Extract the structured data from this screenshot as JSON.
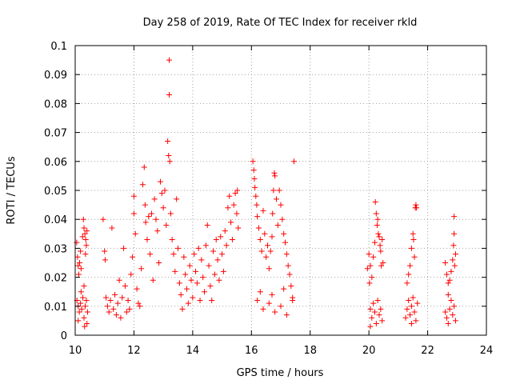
{
  "chart_data": {
    "type": "scatter",
    "title": "Day 258 of 2019, Rate Of TEC Index for receiver rkld",
    "xlabel": "GPS time / hours",
    "ylabel": "ROTI / TECUs",
    "xlim": [
      10,
      24
    ],
    "ylim": [
      0,
      0.1
    ],
    "xticks": [
      10,
      12,
      14,
      16,
      18,
      20,
      22,
      24
    ],
    "yticks": [
      0,
      0.01,
      0.02,
      0.03,
      0.04,
      0.05,
      0.06,
      0.07,
      0.08,
      0.09,
      0.1
    ],
    "ytick_labels": [
      "0",
      "0.01",
      "0.02",
      "0.03",
      "0.04",
      "0.05",
      "0.06",
      "0.07",
      "0.08",
      "0.09",
      "0.1"
    ],
    "grid": true,
    "marker": "+",
    "color": "#ff0000",
    "series": [
      {
        "name": "rkld",
        "points": [
          [
            10.05,
            0.032
          ],
          [
            10.08,
            0.027
          ],
          [
            10.1,
            0.024
          ],
          [
            10.12,
            0.021
          ],
          [
            10.15,
            0.025
          ],
          [
            10.18,
            0.029
          ],
          [
            10.2,
            0.023
          ],
          [
            10.06,
            0.012
          ],
          [
            10.1,
            0.01
          ],
          [
            10.14,
            0.008
          ],
          [
            10.18,
            0.011
          ],
          [
            10.22,
            0.009
          ],
          [
            10.26,
            0.013
          ],
          [
            10.3,
            0.006
          ],
          [
            10.34,
            0.01
          ],
          [
            10.38,
            0.012
          ],
          [
            10.42,
            0.008
          ],
          [
            10.1,
            0.005
          ],
          [
            10.2,
            0.015
          ],
          [
            10.3,
            0.017
          ],
          [
            10.28,
            0.04
          ],
          [
            10.3,
            0.037
          ],
          [
            10.33,
            0.035
          ],
          [
            10.36,
            0.033
          ],
          [
            10.38,
            0.031
          ],
          [
            10.4,
            0.036
          ],
          [
            10.35,
            0.028
          ],
          [
            10.25,
            0.034
          ],
          [
            10.4,
            0.004
          ],
          [
            10.32,
            0.003
          ],
          [
            10.95,
            0.04
          ],
          [
            11.0,
            0.029
          ],
          [
            11.02,
            0.026
          ],
          [
            11.05,
            0.013
          ],
          [
            11.1,
            0.01
          ],
          [
            11.15,
            0.008
          ],
          [
            11.2,
            0.012
          ],
          [
            11.25,
            0.037
          ],
          [
            11.3,
            0.009
          ],
          [
            11.35,
            0.014
          ],
          [
            11.4,
            0.007
          ],
          [
            11.45,
            0.011
          ],
          [
            11.5,
            0.019
          ],
          [
            11.55,
            0.006
          ],
          [
            11.6,
            0.013
          ],
          [
            11.65,
            0.03
          ],
          [
            11.7,
            0.017
          ],
          [
            11.75,
            0.008
          ],
          [
            11.8,
            0.012
          ],
          [
            11.85,
            0.009
          ],
          [
            11.9,
            0.021
          ],
          [
            11.95,
            0.027
          ],
          [
            12.0,
            0.042
          ],
          [
            12.0,
            0.048
          ],
          [
            12.05,
            0.035
          ],
          [
            12.1,
            0.016
          ],
          [
            12.15,
            0.011
          ],
          [
            12.2,
            0.01
          ],
          [
            12.25,
            0.023
          ],
          [
            12.3,
            0.052
          ],
          [
            12.35,
            0.058
          ],
          [
            12.38,
            0.045
          ],
          [
            12.4,
            0.039
          ],
          [
            12.45,
            0.033
          ],
          [
            12.5,
            0.041
          ],
          [
            12.55,
            0.028
          ],
          [
            12.6,
            0.042
          ],
          [
            12.65,
            0.019
          ],
          [
            12.7,
            0.047
          ],
          [
            12.75,
            0.04
          ],
          [
            12.8,
            0.036
          ],
          [
            12.85,
            0.025
          ],
          [
            12.9,
            0.053
          ],
          [
            12.95,
            0.049
          ],
          [
            13.0,
            0.044
          ],
          [
            13.05,
            0.05
          ],
          [
            13.1,
            0.038
          ],
          [
            13.15,
            0.067
          ],
          [
            13.18,
            0.062
          ],
          [
            13.2,
            0.095
          ],
          [
            13.2,
            0.083
          ],
          [
            13.22,
            0.06
          ],
          [
            13.25,
            0.042
          ],
          [
            13.3,
            0.033
          ],
          [
            13.35,
            0.028
          ],
          [
            13.4,
            0.022
          ],
          [
            13.45,
            0.047
          ],
          [
            13.5,
            0.03
          ],
          [
            13.55,
            0.018
          ],
          [
            13.6,
            0.014
          ],
          [
            13.65,
            0.009
          ],
          [
            13.7,
            0.027
          ],
          [
            13.75,
            0.021
          ],
          [
            13.8,
            0.016
          ],
          [
            13.85,
            0.011
          ],
          [
            13.9,
            0.024
          ],
          [
            13.95,
            0.019
          ],
          [
            14.0,
            0.013
          ],
          [
            14.05,
            0.028
          ],
          [
            14.1,
            0.022
          ],
          [
            14.15,
            0.018
          ],
          [
            14.2,
            0.03
          ],
          [
            14.25,
            0.012
          ],
          [
            14.3,
            0.026
          ],
          [
            14.35,
            0.02
          ],
          [
            14.4,
            0.015
          ],
          [
            14.45,
            0.031
          ],
          [
            14.5,
            0.038
          ],
          [
            14.55,
            0.024
          ],
          [
            14.6,
            0.017
          ],
          [
            14.65,
            0.012
          ],
          [
            14.7,
            0.029
          ],
          [
            14.75,
            0.021
          ],
          [
            14.8,
            0.033
          ],
          [
            14.85,
            0.026
          ],
          [
            14.9,
            0.019
          ],
          [
            14.95,
            0.034
          ],
          [
            15.0,
            0.028
          ],
          [
            15.05,
            0.022
          ],
          [
            15.1,
            0.036
          ],
          [
            15.15,
            0.031
          ],
          [
            15.2,
            0.044
          ],
          [
            15.25,
            0.048
          ],
          [
            15.3,
            0.039
          ],
          [
            15.35,
            0.033
          ],
          [
            15.4,
            0.045
          ],
          [
            15.45,
            0.049
          ],
          [
            15.5,
            0.042
          ],
          [
            15.52,
            0.05
          ],
          [
            15.55,
            0.037
          ],
          [
            16.05,
            0.06
          ],
          [
            16.08,
            0.057
          ],
          [
            16.1,
            0.054
          ],
          [
            16.12,
            0.051
          ],
          [
            16.15,
            0.048
          ],
          [
            16.18,
            0.045
          ],
          [
            16.2,
            0.041
          ],
          [
            16.25,
            0.037
          ],
          [
            16.3,
            0.033
          ],
          [
            16.35,
            0.029
          ],
          [
            16.4,
            0.043
          ],
          [
            16.45,
            0.035
          ],
          [
            16.5,
            0.027
          ],
          [
            16.55,
            0.031
          ],
          [
            16.6,
            0.023
          ],
          [
            16.65,
            0.029
          ],
          [
            16.7,
            0.034
          ],
          [
            16.72,
            0.042
          ],
          [
            16.75,
            0.05
          ],
          [
            16.78,
            0.056
          ],
          [
            16.8,
            0.055
          ],
          [
            16.85,
            0.047
          ],
          [
            16.9,
            0.038
          ],
          [
            16.95,
            0.05
          ],
          [
            17.0,
            0.045
          ],
          [
            17.05,
            0.04
          ],
          [
            17.1,
            0.035
          ],
          [
            17.15,
            0.032
          ],
          [
            17.2,
            0.028
          ],
          [
            17.25,
            0.024
          ],
          [
            17.3,
            0.021
          ],
          [
            17.35,
            0.017
          ],
          [
            17.4,
            0.013
          ],
          [
            17.45,
            0.06
          ],
          [
            16.2,
            0.012
          ],
          [
            16.4,
            0.009
          ],
          [
            16.6,
            0.011
          ],
          [
            16.8,
            0.008
          ],
          [
            17.0,
            0.01
          ],
          [
            17.2,
            0.007
          ],
          [
            17.4,
            0.012
          ],
          [
            16.3,
            0.015
          ],
          [
            16.7,
            0.014
          ],
          [
            17.1,
            0.016
          ],
          [
            19.95,
            0.023
          ],
          [
            20.0,
            0.028
          ],
          [
            20.02,
            0.018
          ],
          [
            20.05,
            0.024
          ],
          [
            20.1,
            0.02
          ],
          [
            20.15,
            0.027
          ],
          [
            20.2,
            0.032
          ],
          [
            20.22,
            0.046
          ],
          [
            20.25,
            0.042
          ],
          [
            20.28,
            0.038
          ],
          [
            20.3,
            0.04
          ],
          [
            20.32,
            0.035
          ],
          [
            20.35,
            0.034
          ],
          [
            20.38,
            0.031
          ],
          [
            20.4,
            0.029
          ],
          [
            20.42,
            0.024
          ],
          [
            20.45,
            0.033
          ],
          [
            20.48,
            0.025
          ],
          [
            20.05,
            0.009
          ],
          [
            20.1,
            0.006
          ],
          [
            20.15,
            0.011
          ],
          [
            20.2,
            0.008
          ],
          [
            20.25,
            0.004
          ],
          [
            20.3,
            0.012
          ],
          [
            20.35,
            0.007
          ],
          [
            20.4,
            0.009
          ],
          [
            20.45,
            0.005
          ],
          [
            20.05,
            0.003
          ],
          [
            21.3,
            0.018
          ],
          [
            21.35,
            0.021
          ],
          [
            21.4,
            0.024
          ],
          [
            21.45,
            0.03
          ],
          [
            21.5,
            0.035
          ],
          [
            21.52,
            0.033
          ],
          [
            21.55,
            0.027
          ],
          [
            21.58,
            0.044
          ],
          [
            21.6,
            0.045
          ],
          [
            21.62,
            0.044
          ],
          [
            21.25,
            0.006
          ],
          [
            21.3,
            0.009
          ],
          [
            21.35,
            0.012
          ],
          [
            21.4,
            0.007
          ],
          [
            21.45,
            0.01
          ],
          [
            21.5,
            0.013
          ],
          [
            21.55,
            0.008
          ],
          [
            21.6,
            0.005
          ],
          [
            21.65,
            0.011
          ],
          [
            21.45,
            0.004
          ],
          [
            22.6,
            0.025
          ],
          [
            22.65,
            0.021
          ],
          [
            22.7,
            0.018
          ],
          [
            22.75,
            0.019
          ],
          [
            22.8,
            0.022
          ],
          [
            22.85,
            0.026
          ],
          [
            22.88,
            0.031
          ],
          [
            22.9,
            0.035
          ],
          [
            22.95,
            0.028
          ],
          [
            22.9,
            0.041
          ],
          [
            22.92,
            0.024
          ],
          [
            22.6,
            0.008
          ],
          [
            22.65,
            0.006
          ],
          [
            22.7,
            0.004
          ],
          [
            22.75,
            0.009
          ],
          [
            22.8,
            0.012
          ],
          [
            22.85,
            0.007
          ],
          [
            22.9,
            0.01
          ],
          [
            22.95,
            0.005
          ],
          [
            22.7,
            0.014
          ]
        ]
      }
    ]
  }
}
